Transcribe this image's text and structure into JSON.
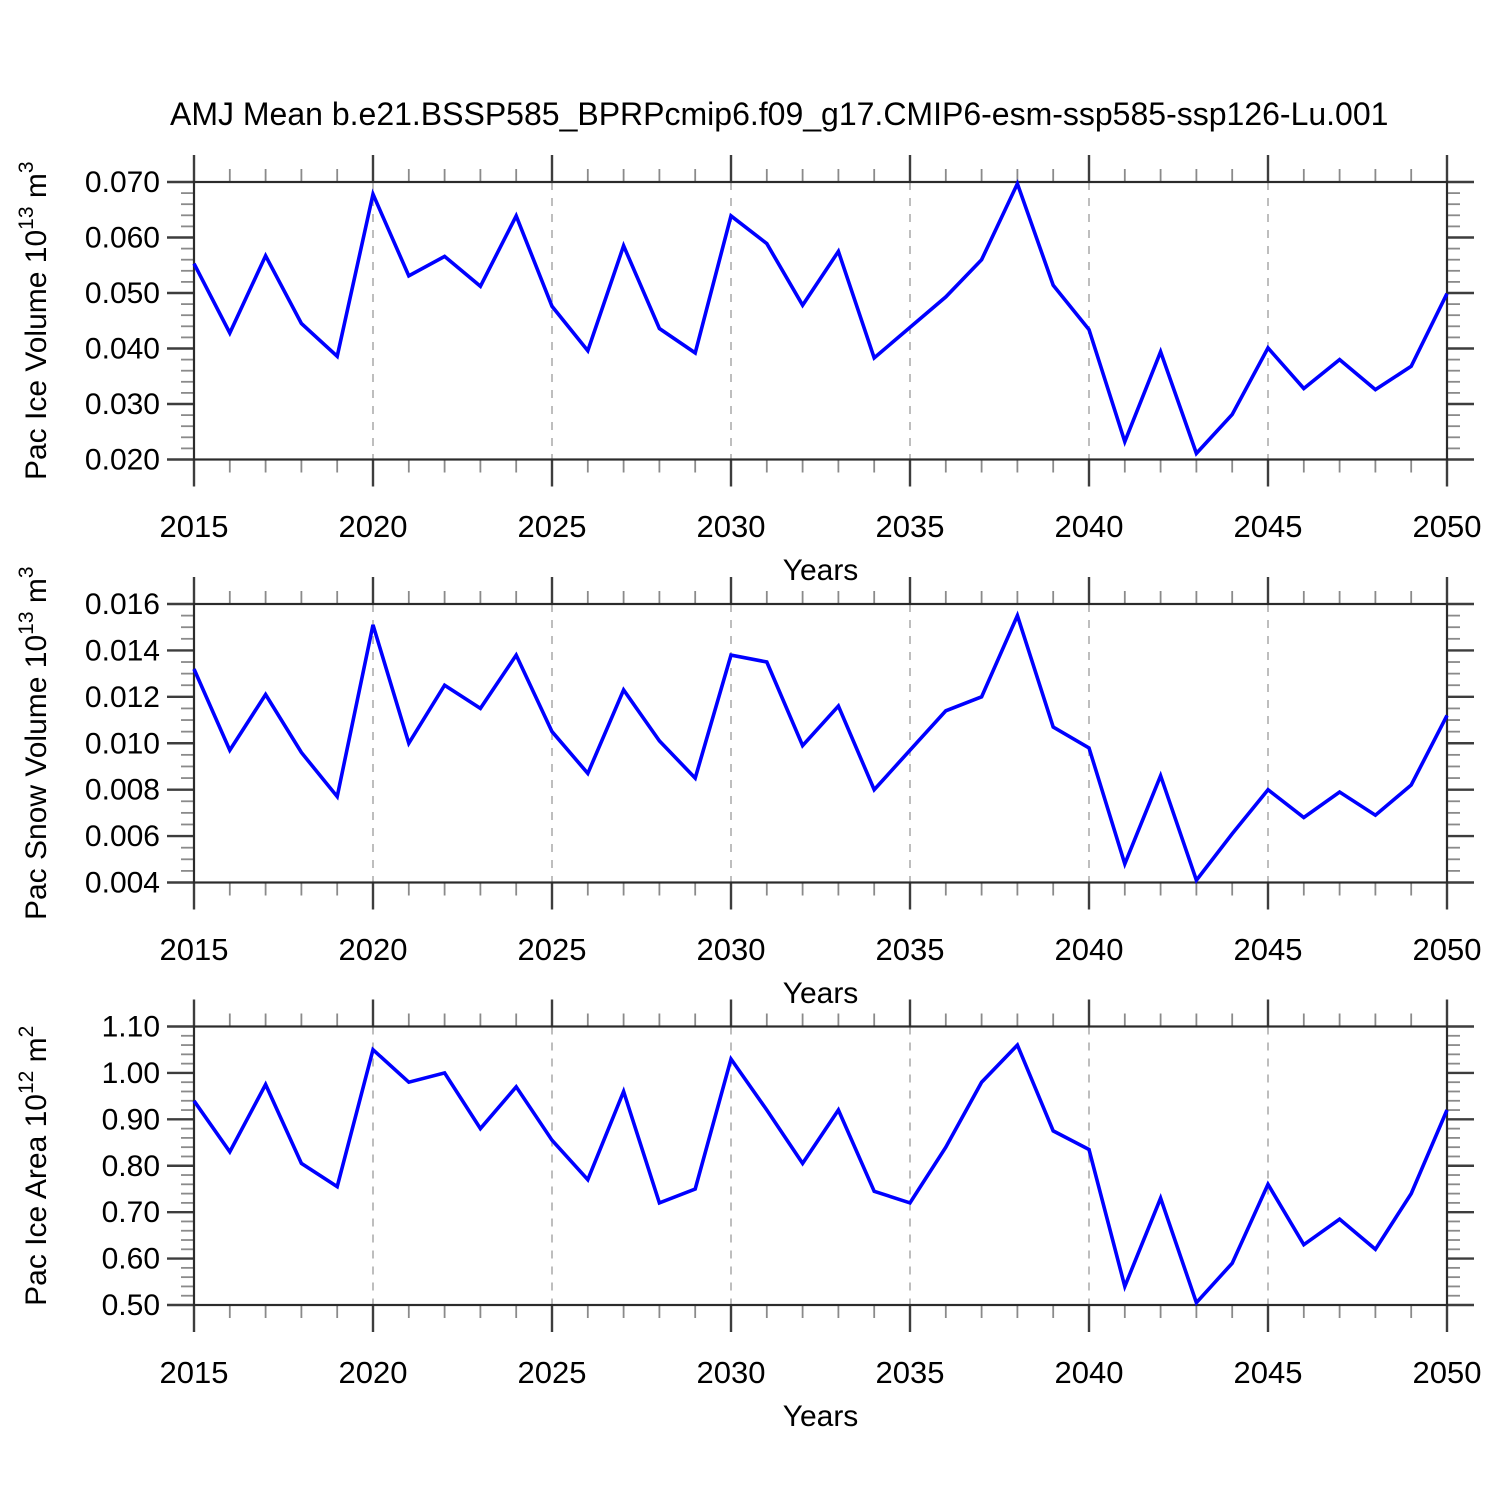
{
  "figure": {
    "title": "AMJ Mean b.e21.BSSP585_BPRPcmip6.f09_g17.CMIP6-esm-ssp585-ssp126-Lu.001",
    "line_color": "#0000FF",
    "background": "#FFFFFF",
    "axis_color": "#2b2b2b",
    "major_tick_color": "#3d3d3d",
    "minor_tick_color": "#8a8a8a",
    "grid_color": "#b3b3b3"
  },
  "chart_data": [
    {
      "type": "line",
      "name": "pac-ice-volume",
      "ylabel": "Pac Ice Volume 10^13 m^3",
      "ylabel_parts": {
        "base": "Pac Ice Volume 10",
        "exponent": "13",
        "unit_base": " m",
        "unit_exponent": "3"
      },
      "xlabel": "Years",
      "legend": "none",
      "grid": "dashed-vertical",
      "xlim": [
        2015,
        2050
      ],
      "ylim": [
        0.02,
        0.07
      ],
      "xtick_values": [
        2015,
        2020,
        2025,
        2030,
        2035,
        2040,
        2045,
        2050
      ],
      "xtick_labels": [
        "2015",
        "2020",
        "2025",
        "2030",
        "2035",
        "2040",
        "2045",
        "2050"
      ],
      "xminor_step": 1,
      "grid_x": [
        2020,
        2025,
        2030,
        2035,
        2040,
        2045
      ],
      "ytick_values": [
        0.02,
        0.03,
        0.04,
        0.05,
        0.06,
        0.07
      ],
      "ytick_labels": [
        "0.020",
        "0.030",
        "0.040",
        "0.050",
        "0.060",
        "0.070"
      ],
      "yminor_step": 0.002,
      "x": [
        2015,
        2016,
        2017,
        2018,
        2019,
        2020,
        2021,
        2022,
        2023,
        2024,
        2025,
        2026,
        2027,
        2028,
        2029,
        2030,
        2031,
        2032,
        2033,
        2034,
        2035,
        2036,
        2037,
        2038,
        2039,
        2040,
        2041,
        2042,
        2043,
        2044,
        2045,
        2046,
        2047,
        2048,
        2049,
        2050
      ],
      "values": [
        0.0553,
        0.0428,
        0.0567,
        0.0445,
        0.0386,
        0.0678,
        0.0531,
        0.0566,
        0.0512,
        0.0639,
        0.0476,
        0.0396,
        0.0585,
        0.0436,
        0.0392,
        0.0639,
        0.0589,
        0.0478,
        0.0575,
        0.0383,
        0.0438,
        0.0493,
        0.056,
        0.0697,
        0.0514,
        0.0434,
        0.0232,
        0.0394,
        0.0211,
        0.0281,
        0.0401,
        0.0328,
        0.038,
        0.0326,
        0.0368,
        0.0499
      ]
    },
    {
      "type": "line",
      "name": "pac-snow-volume",
      "ylabel": "Pac Snow Volume 10^13 m^3",
      "ylabel_parts": {
        "base": "Pac Snow Volume 10",
        "exponent": "13",
        "unit_base": " m",
        "unit_exponent": "3"
      },
      "xlabel": "Years",
      "legend": "none",
      "grid": "dashed-vertical",
      "xlim": [
        2015,
        2050
      ],
      "ylim": [
        0.004,
        0.016
      ],
      "xtick_values": [
        2015,
        2020,
        2025,
        2030,
        2035,
        2040,
        2045,
        2050
      ],
      "xtick_labels": [
        "2015",
        "2020",
        "2025",
        "2030",
        "2035",
        "2040",
        "2045",
        "2050"
      ],
      "xminor_step": 1,
      "grid_x": [
        2020,
        2025,
        2030,
        2035,
        2040,
        2045
      ],
      "ytick_values": [
        0.004,
        0.006,
        0.008,
        0.01,
        0.012,
        0.014,
        0.016
      ],
      "ytick_labels": [
        "0.004",
        "0.006",
        "0.008",
        "0.010",
        "0.012",
        "0.014",
        "0.016"
      ],
      "yminor_step": 0.0005,
      "x": [
        2015,
        2016,
        2017,
        2018,
        2019,
        2020,
        2021,
        2022,
        2023,
        2024,
        2025,
        2026,
        2027,
        2028,
        2029,
        2030,
        2031,
        2032,
        2033,
        2034,
        2035,
        2036,
        2037,
        2038,
        2039,
        2040,
        2041,
        2042,
        2043,
        2044,
        2045,
        2046,
        2047,
        2048,
        2049,
        2050
      ],
      "values": [
        0.0132,
        0.0097,
        0.0121,
        0.0096,
        0.0077,
        0.0151,
        0.01,
        0.0125,
        0.0115,
        0.0138,
        0.0105,
        0.0087,
        0.0123,
        0.0101,
        0.0085,
        0.0138,
        0.0135,
        0.0099,
        0.0116,
        0.008,
        0.0097,
        0.0114,
        0.012,
        0.0155,
        0.0107,
        0.0098,
        0.0048,
        0.0086,
        0.0041,
        0.0061,
        0.008,
        0.0068,
        0.0079,
        0.0069,
        0.0082,
        0.0112
      ]
    },
    {
      "type": "line",
      "name": "pac-ice-area",
      "ylabel": "Pac Ice Area 10^12 m^2",
      "ylabel_parts": {
        "base": "Pac Ice Area 10",
        "exponent": "12",
        "unit_base": " m",
        "unit_exponent": "2"
      },
      "xlabel": "Years",
      "legend": "none",
      "grid": "dashed-vertical",
      "xlim": [
        2015,
        2050
      ],
      "ylim": [
        0.5,
        1.1
      ],
      "xtick_values": [
        2015,
        2020,
        2025,
        2030,
        2035,
        2040,
        2045,
        2050
      ],
      "xtick_labels": [
        "2015",
        "2020",
        "2025",
        "2030",
        "2035",
        "2040",
        "2045",
        "2050"
      ],
      "xminor_step": 1,
      "grid_x": [
        2020,
        2025,
        2030,
        2035,
        2040,
        2045
      ],
      "ytick_values": [
        0.5,
        0.6,
        0.7,
        0.8,
        0.9,
        1.0,
        1.1
      ],
      "ytick_labels": [
        "0.50",
        "0.60",
        "0.70",
        "0.80",
        "0.90",
        "1.00",
        "1.10"
      ],
      "yminor_step": 0.02,
      "x": [
        2015,
        2016,
        2017,
        2018,
        2019,
        2020,
        2021,
        2022,
        2023,
        2024,
        2025,
        2026,
        2027,
        2028,
        2029,
        2030,
        2031,
        2032,
        2033,
        2034,
        2035,
        2036,
        2037,
        2038,
        2039,
        2040,
        2041,
        2042,
        2043,
        2044,
        2045,
        2046,
        2047,
        2048,
        2049,
        2050
      ],
      "values": [
        0.94,
        0.83,
        0.975,
        0.805,
        0.755,
        1.05,
        0.98,
        1.0,
        0.88,
        0.97,
        0.855,
        0.77,
        0.96,
        0.72,
        0.75,
        1.03,
        0.92,
        0.805,
        0.92,
        0.745,
        0.72,
        0.84,
        0.98,
        1.06,
        0.875,
        0.835,
        0.54,
        0.73,
        0.505,
        0.59,
        0.76,
        0.63,
        0.685,
        0.62,
        0.74,
        0.92
      ]
    }
  ]
}
